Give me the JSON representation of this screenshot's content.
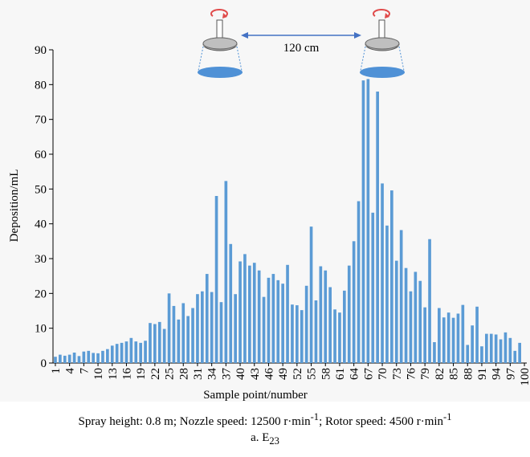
{
  "colors": {
    "bar": "#5b9bd5",
    "axis": "#000000",
    "nozzle_disc": "#4f91d6",
    "arrow": "#4472c4",
    "rotation": "#e04b4b"
  },
  "illustration": {
    "distance_label": "120 cm"
  },
  "caption": {
    "line_prefix": "Spray height: 0.8 m; Nozzle speed: 12500 r·min",
    "line_sup1": "-1",
    "line_middle": "; Rotor speed: 4500 r·min",
    "line_sup2": "-1",
    "sub_prefix": "a. E",
    "sub_subscript": "23"
  },
  "chart_data": {
    "type": "bar",
    "xlabel": "Sample point/number",
    "ylabel": "Deposition/mL",
    "ylim": [
      0,
      90
    ],
    "yticks": [
      0,
      10,
      20,
      30,
      40,
      50,
      60,
      70,
      80,
      90
    ],
    "xtick_labels": [
      "1",
      "4",
      "7",
      "10",
      "13",
      "16",
      "19",
      "22",
      "25",
      "28",
      "31",
      "34",
      "37",
      "40",
      "43",
      "46",
      "49",
      "52",
      "55",
      "58",
      "61",
      "64",
      "67",
      "70",
      "73",
      "76",
      "79",
      "82",
      "85",
      "88",
      "91",
      "94",
      "97",
      "100"
    ],
    "categories": [
      1,
      2,
      3,
      4,
      5,
      6,
      7,
      8,
      9,
      10,
      11,
      12,
      13,
      14,
      15,
      16,
      17,
      18,
      19,
      20,
      21,
      22,
      23,
      24,
      25,
      26,
      27,
      28,
      29,
      30,
      31,
      32,
      33,
      34,
      35,
      36,
      37,
      38,
      39,
      40,
      41,
      42,
      43,
      44,
      45,
      46,
      47,
      48,
      49,
      50,
      51,
      52,
      53,
      54,
      55,
      56,
      57,
      58,
      59,
      60,
      61,
      62,
      63,
      64,
      65,
      66,
      67,
      68,
      69,
      70,
      71,
      72,
      73,
      74,
      75,
      76,
      77,
      78,
      79,
      80,
      81,
      82,
      83,
      84,
      85,
      86,
      87,
      88,
      89,
      90,
      91,
      92,
      93,
      94,
      95,
      96,
      97,
      98,
      99,
      100
    ],
    "values": [
      1.8,
      2.4,
      2.1,
      2.4,
      3.0,
      2.0,
      3.3,
      3.5,
      2.9,
      2.8,
      3.5,
      4.0,
      5.0,
      5.5,
      5.8,
      6.2,
      7.2,
      6.2,
      5.8,
      6.4,
      11.5,
      11.2,
      11.8,
      9.8,
      20.0,
      16.4,
      12.5,
      17.2,
      13.5,
      15.8,
      19.8,
      20.6,
      25.6,
      20.4,
      48.0,
      17.5,
      52.3,
      34.2,
      19.8,
      29.2,
      31.3,
      28.0,
      28.8,
      26.6,
      19.0,
      24.5,
      25.6,
      23.8,
      22.8,
      28.2,
      16.8,
      16.6,
      15.2,
      22.2,
      39.2,
      18.0,
      27.8,
      26.6,
      21.8,
      15.4,
      14.5,
      20.8,
      28.0,
      35.0,
      46.5,
      81.2,
      81.6,
      43.2,
      78.0,
      51.6,
      39.5,
      49.6,
      29.4,
      38.2,
      27.3,
      20.6,
      26.2,
      23.6,
      16.0,
      35.6,
      6.0,
      15.8,
      13.1,
      14.5,
      13.0,
      14.2,
      16.7,
      5.2,
      10.8,
      16.2,
      4.8,
      8.4,
      8.4,
      8.2,
      6.8,
      8.8,
      7.2,
      3.5,
      5.8,
      0
    ]
  }
}
